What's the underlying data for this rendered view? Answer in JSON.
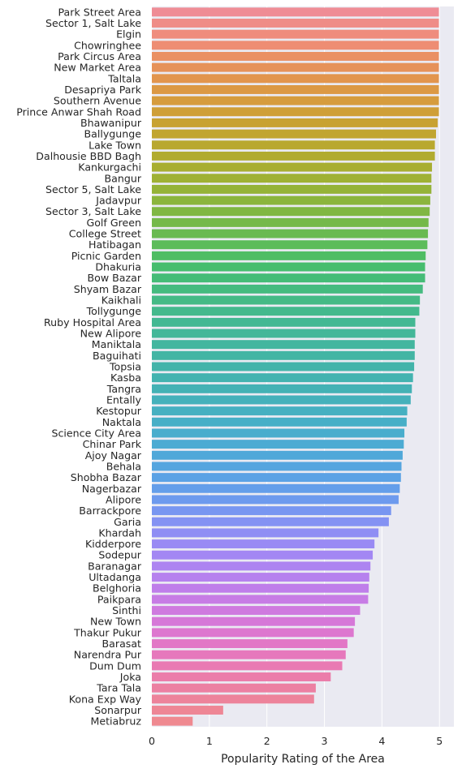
{
  "chart_data": {
    "type": "bar",
    "orientation": "horizontal",
    "title": "",
    "xlabel": "Popularity Rating of the Area",
    "ylabel": "",
    "xlim": [
      0,
      5.25
    ],
    "xticks": [
      "0",
      "1",
      "2",
      "3",
      "4",
      "5"
    ],
    "grid": true,
    "legend": "none",
    "background": "#eaeaf2",
    "categories": [
      "Park Street Area",
      "Sector 1, Salt Lake",
      "Elgin",
      "Chowringhee",
      "Park Circus Area",
      "New Market Area",
      "Taltala",
      "Desapriya Park",
      "Southern Avenue",
      "Prince Anwar Shah Road",
      "Bhawanipur",
      "Ballygunge",
      "Lake Town",
      "Dalhousie BBD Bagh",
      "Kankurgachi",
      "Bangur",
      "Sector 5, Salt Lake",
      "Jadavpur",
      "Sector 3, Salt Lake",
      "Golf Green",
      "College Street",
      "Hatibagan",
      "Picnic Garden",
      "Dhakuria",
      "Bow Bazar",
      "Shyam Bazar",
      "Kaikhali",
      "Tollygunge",
      "Ruby Hospital Area",
      "New Alipore",
      "Maniktala",
      "Baguihati",
      "Topsia",
      "Kasba",
      "Tangra",
      "Entally",
      "Kestopur",
      "Naktala",
      "Science City Area",
      "Chinar Park",
      "Ajoy Nagar",
      "Behala",
      "Shobha Bazar",
      "Nagerbazar",
      "Alipore",
      "Barrackpore",
      "Garia",
      "Khardah",
      "Kidderpore",
      "Sodepur",
      "Baranagar",
      "Ultadanga",
      "Belghoria",
      "Paikpara",
      "Sinthi",
      "New Town",
      "Thakur Pukur",
      "Barasat",
      "Narendra Pur",
      "Dum Dum",
      "Joka",
      "Tara Tala",
      "Kona Exp Way",
      "Sonarpur",
      "Metiabruz"
    ],
    "values": [
      4.99,
      4.99,
      4.99,
      4.99,
      4.99,
      4.99,
      4.99,
      4.99,
      4.99,
      4.99,
      4.97,
      4.94,
      4.92,
      4.92,
      4.87,
      4.86,
      4.86,
      4.84,
      4.83,
      4.81,
      4.8,
      4.79,
      4.76,
      4.75,
      4.75,
      4.71,
      4.66,
      4.65,
      4.58,
      4.58,
      4.57,
      4.57,
      4.56,
      4.54,
      4.52,
      4.5,
      4.44,
      4.43,
      4.39,
      4.38,
      4.36,
      4.34,
      4.33,
      4.31,
      4.29,
      4.16,
      4.12,
      3.94,
      3.87,
      3.84,
      3.8,
      3.78,
      3.77,
      3.76,
      3.62,
      3.53,
      3.51,
      3.4,
      3.37,
      3.31,
      3.11,
      2.85,
      2.82,
      1.24,
      0.71
    ],
    "colors": [
      "#ef8c95",
      "#ef8c87",
      "#ef8c7d",
      "#ee8d73",
      "#ea9063",
      "#e69259",
      "#e2954d",
      "#dc9944",
      "#d69c3d",
      "#cf9f37",
      "#c8a232",
      "#c1a530",
      "#b9a82f",
      "#b1ab2f",
      "#a8ae31",
      "#9fb134",
      "#95b338",
      "#8bb53d",
      "#80b743",
      "#75b94a",
      "#69ba51",
      "#5cbc5a",
      "#4fbd64",
      "#46bd6e",
      "#45bc77",
      "#45bb7f",
      "#45ba86",
      "#44b98d",
      "#43b893",
      "#43b799",
      "#43b69f",
      "#43b5a4",
      "#43b4aa",
      "#43b3b0",
      "#44b2b5",
      "#45b1bb",
      "#46b0c1",
      "#47afc7",
      "#49adcd",
      "#4cabd3",
      "#50a8d9",
      "#55a5df",
      "#5ba2e5",
      "#649eea",
      "#6d9aee",
      "#7896f1",
      "#8492f3",
      "#8f8ef4",
      "#998af4",
      "#a387f3",
      "#ad84f1",
      "#b681ee",
      "#bf7eea",
      "#c77ce5",
      "#cf7adf",
      "#d678d8",
      "#dd77cf",
      "#e277c6",
      "#e678bc",
      "#e97ab3",
      "#eb7daa",
      "#ec80a2",
      "#ed839b",
      "#ee8695",
      "#ef8990"
    ]
  }
}
